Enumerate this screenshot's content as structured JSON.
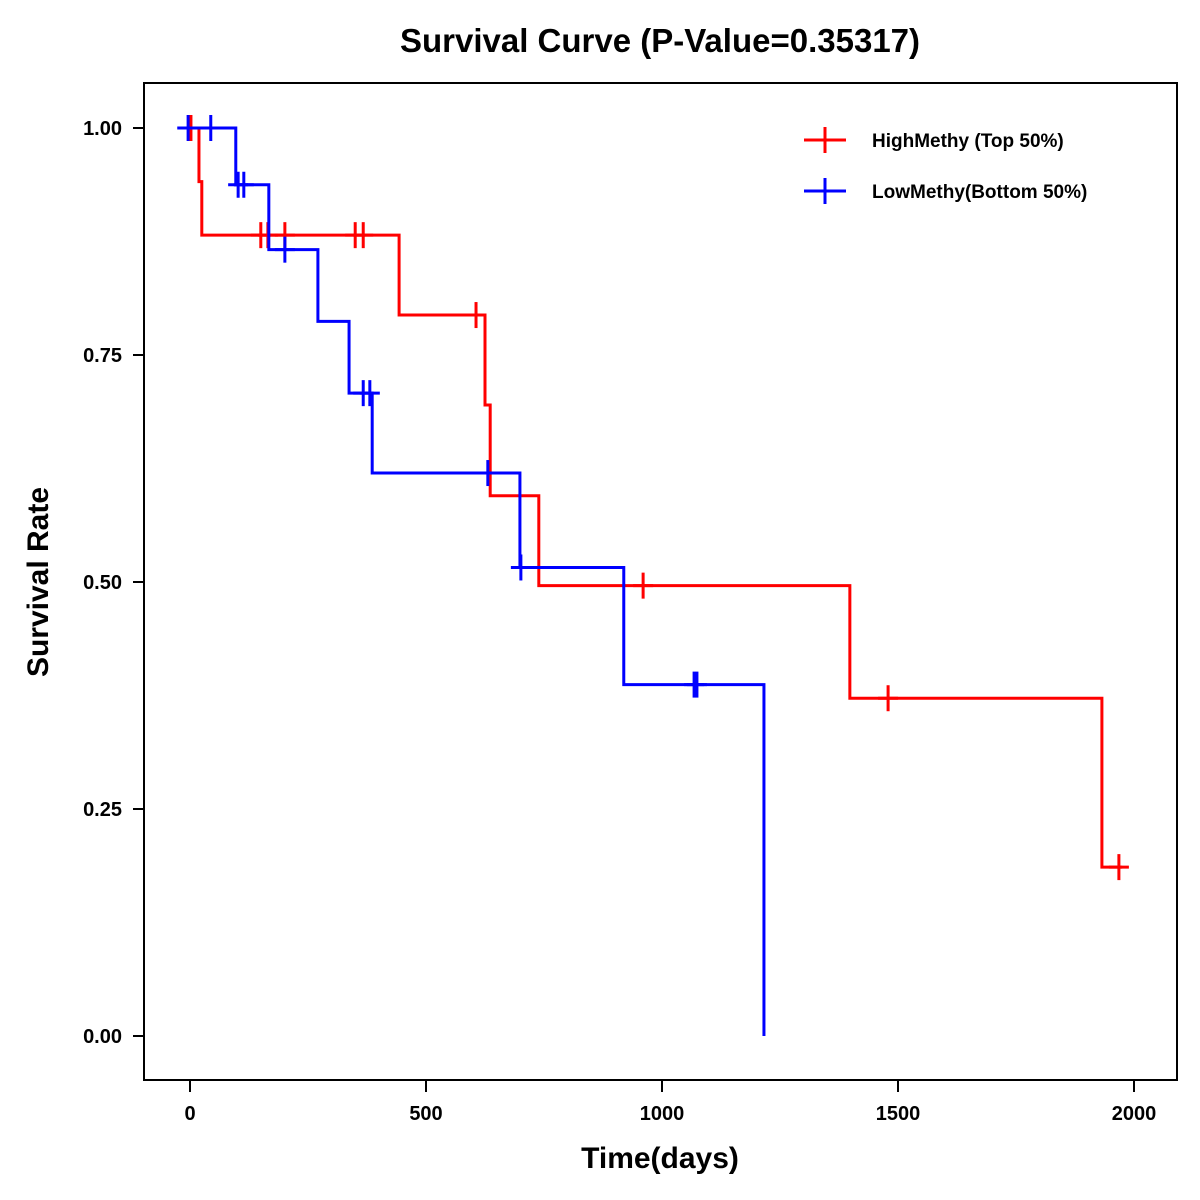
{
  "chart_data": {
    "type": "line",
    "subtype": "kaplan-meier-step",
    "title": "Survival Curve (P-Value=0.35317)",
    "xlabel": "Time(days)",
    "ylabel": "Survival Rate",
    "xlim": [
      -95,
      2085
    ],
    "ylim": [
      -0.048,
      1.05
    ],
    "x_ticks": [
      0,
      500,
      1000,
      1500,
      2000
    ],
    "x_tick_labels": [
      "0",
      "500",
      "1000",
      "1500",
      "2000"
    ],
    "y_ticks": [
      0,
      0.25,
      0.5,
      0.75,
      1.0
    ],
    "y_tick_labels": [
      "0.00",
      "0.25",
      "0.50",
      "0.75",
      "1.00"
    ],
    "grid": false,
    "legend_position": "top-right",
    "series": [
      {
        "name": "HighMethy (Top 50%)",
        "color": "#ff0000",
        "steps": [
          {
            "time": 0,
            "survival": 1.0
          },
          {
            "time": 19,
            "survival": 0.941
          },
          {
            "time": 25,
            "survival": 0.882
          },
          {
            "time": 443,
            "survival": 0.794
          },
          {
            "time": 625,
            "survival": 0.695
          },
          {
            "time": 636,
            "survival": 0.595
          },
          {
            "time": 739,
            "survival": 0.496
          },
          {
            "time": 1398,
            "survival": 0.372
          },
          {
            "time": 1932,
            "survival": 0.186
          }
        ],
        "end_time": 1975,
        "censored": [
          {
            "time": 2,
            "survival": 1.0
          },
          {
            "time": 150,
            "survival": 0.882
          },
          {
            "time": 165,
            "survival": 0.882
          },
          {
            "time": 201,
            "survival": 0.882
          },
          {
            "time": 350,
            "survival": 0.882
          },
          {
            "time": 367,
            "survival": 0.882
          },
          {
            "time": 606,
            "survival": 0.794
          },
          {
            "time": 960,
            "survival": 0.496
          },
          {
            "time": 1479,
            "survival": 0.372
          },
          {
            "time": 1968,
            "survival": 0.186
          }
        ]
      },
      {
        "name": "LowMethy(Bottom 50%)",
        "color": "#0000ff",
        "steps": [
          {
            "time": -27,
            "survival": 1.0
          },
          {
            "time": 97,
            "survival": 0.9375
          },
          {
            "time": 167,
            "survival": 0.866
          },
          {
            "time": 271,
            "survival": 0.787
          },
          {
            "time": 337,
            "survival": 0.708
          },
          {
            "time": 386,
            "survival": 0.62
          },
          {
            "time": 699,
            "survival": 0.516
          },
          {
            "time": 919,
            "survival": 0.387
          },
          {
            "time": 1216,
            "survival": 0.0
          }
        ],
        "end_time": 1216,
        "censored": [
          {
            "time": -4,
            "survival": 1.0
          },
          {
            "time": 44,
            "survival": 1.0
          },
          {
            "time": 102,
            "survival": 0.9375
          },
          {
            "time": 114,
            "survival": 0.9375
          },
          {
            "time": 201,
            "survival": 0.866
          },
          {
            "time": 367,
            "survival": 0.708
          },
          {
            "time": 381,
            "survival": 0.708
          },
          {
            "time": 631,
            "survival": 0.62
          },
          {
            "time": 701,
            "survival": 0.516
          },
          {
            "time": 1068,
            "survival": 0.387
          },
          {
            "time": 1074,
            "survival": 0.387
          }
        ]
      }
    ]
  }
}
